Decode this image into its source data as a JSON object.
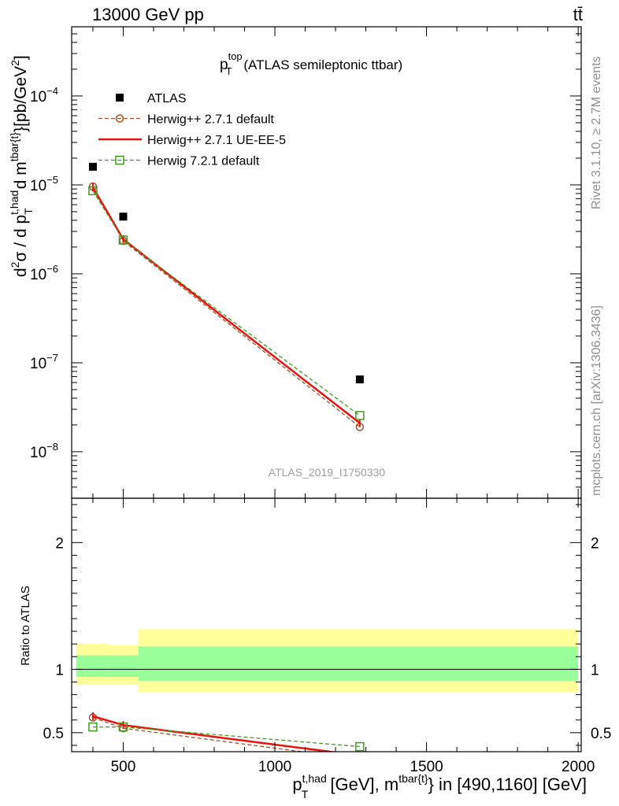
{
  "header": {
    "left_label": "13000 GeV pp",
    "right_label": "tt̄"
  },
  "side_labels": {
    "rivet": "Rivet 3.1.10, ≥ 2.7M events",
    "mcplots": "mcplots.cern.ch [arXiv:1306.3436]"
  },
  "chart_data": {
    "type": "line",
    "title": {
      "main": "p",
      "sub": "T",
      "sup": "top",
      "rest": " (ATLAS semileptonic ttbar)"
    },
    "watermark": "ATLAS_2019_I1750330",
    "xaxis": {
      "lim": [
        330,
        2010
      ],
      "ticks": [
        500,
        1000,
        1500,
        2000
      ],
      "label": {
        "p": "p",
        "sup1": "t,had",
        "sub1": "T",
        "mid": " [GeV], m",
        "sup2": "tbar{t}",
        "tail": "} in [490,1160] [GeV]"
      }
    },
    "upper": {
      "log": true,
      "ylim": [
        3e-09,
        0.0006
      ],
      "ticks": [
        {
          "value": 1e-08,
          "mantissa": "10",
          "exp": "−8"
        },
        {
          "value": 1e-07,
          "mantissa": "10",
          "exp": "−7"
        },
        {
          "value": 1e-06,
          "mantissa": "10",
          "exp": "−6"
        },
        {
          "value": 1e-05,
          "mantissa": "10",
          "exp": "−5"
        },
        {
          "value": 0.0001,
          "mantissa": "10",
          "exp": "−4"
        }
      ],
      "ylabel": {
        "d1": "d",
        "two": "2",
        "sigma": "σ / d p",
        "sup1": "t,had",
        "sub1": "T",
        "dm": " d m",
        "sup2": "tbar{t}",
        "unit": "}[pb/GeV",
        "unit_sup": "2",
        "unit_close": "]"
      },
      "series": [
        {
          "name": "ATLAS",
          "marker": "square",
          "color": "#000000",
          "x": [
            400,
            500,
            1280
          ],
          "y": [
            1.6e-05,
            4.4e-06,
            6.5e-08
          ]
        },
        {
          "name": "Herwig++ 2.7.1 default",
          "marker": "circle",
          "line": "dashed",
          "color": "#a0522d",
          "x": [
            400,
            500,
            1280
          ],
          "y": [
            9.6e-06,
            2.35e-06,
            1.9e-08
          ]
        },
        {
          "name": "Herwig++ 2.7.1 UE-EE-5",
          "marker": "none",
          "line": "solid",
          "color": "#e8130f",
          "x": [
            400,
            500,
            1280
          ],
          "y": [
            9.4e-06,
            2.45e-06,
            2.1e-08
          ]
        },
        {
          "name": "Herwig 7.2.1 default",
          "marker": "open-square",
          "line": "dashed",
          "color": "#3f9d1c",
          "x": [
            400,
            500,
            1280
          ],
          "y": [
            8.6e-06,
            2.4e-06,
            2.55e-08
          ]
        }
      ]
    },
    "lower": {
      "ylabel": "Ratio to ATLAS",
      "ylim": [
        0.35,
        2.35
      ],
      "ticks": [
        0.5,
        1,
        2
      ],
      "tick_labels": [
        "0.5",
        "1",
        "2"
      ],
      "bands": [
        {
          "x0": 345,
          "x1": 450,
          "yellow": [
            0.88,
            1.2
          ],
          "green": [
            0.94,
            1.11
          ]
        },
        {
          "x0": 450,
          "x1": 550,
          "yellow": [
            0.88,
            1.19
          ],
          "green": [
            0.94,
            1.11
          ]
        },
        {
          "x0": 550,
          "x1": 2000,
          "yellow": [
            0.82,
            1.32
          ],
          "green": [
            0.91,
            1.18
          ]
        }
      ],
      "series": [
        {
          "name": "Herwig++ 2.7.1 default",
          "x": [
            400,
            500,
            1280
          ],
          "y": [
            0.62,
            0.535,
            0.29
          ]
        },
        {
          "name": "Herwig++ 2.7.1 UE-EE-5",
          "x": [
            400,
            500,
            1280
          ],
          "y": [
            0.63,
            0.56,
            0.32
          ]
        },
        {
          "name": "Herwig 7.2.1 default",
          "x": [
            400,
            500,
            1280
          ],
          "y": [
            0.545,
            0.545,
            0.39
          ]
        }
      ]
    }
  }
}
